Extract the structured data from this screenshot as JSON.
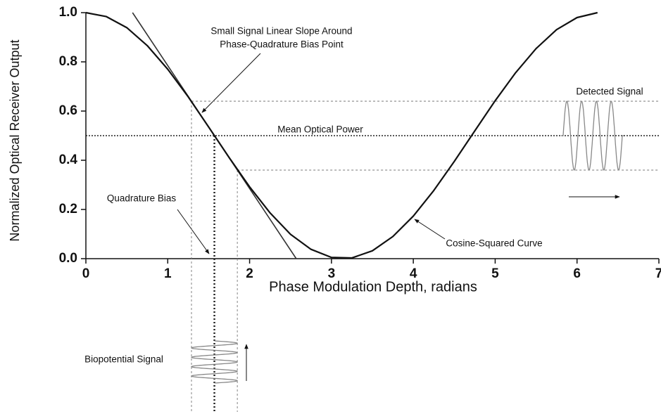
{
  "chart_data": {
    "type": "line",
    "x_label": "Phase Modulation Depth, radians",
    "y_label": "Normalized Optical Receiver Output",
    "xlim": [
      0,
      7
    ],
    "ylim": [
      0,
      1
    ],
    "xticks": [
      0,
      1,
      2,
      3,
      4,
      5,
      6,
      7
    ],
    "yticks": [
      {
        "value": 0,
        "label": "0.0"
      },
      0.2,
      0.4,
      0.6,
      0.8,
      {
        "value": 1,
        "label": "1.0"
      }
    ],
    "series": [
      {
        "color": "#111111",
        "x": [
          0,
          0.25,
          0.5,
          0.75,
          1,
          1.25,
          1.5,
          1.75,
          2,
          2.25,
          2.5,
          2.75,
          3,
          3.25,
          3.5,
          3.75,
          4,
          4.25,
          4.5,
          4.75,
          5,
          5.25,
          5.5,
          5.75,
          6,
          6.25
        ],
        "values": [
          1,
          0.984,
          0.939,
          0.866,
          0.77,
          0.658,
          0.535,
          0.411,
          0.292,
          0.186,
          0.099,
          0.038,
          0.005,
          0.003,
          0.032,
          0.09,
          0.173,
          0.277,
          0.395,
          0.519,
          0.642,
          0.756,
          0.854,
          0.931,
          0.98,
          1
        ]
      }
    ],
    "tangent": {
      "x": [
        0.57,
        2.57
      ],
      "y": [
        1,
        0
      ],
      "color": "#333333"
    },
    "hlines": [
      {
        "y": 0.64,
        "x_from": 1.29
      },
      {
        "y": 0.5,
        "x_from": 0
      },
      {
        "y": 0.36,
        "x_from": 1.85
      }
    ],
    "vlines": [
      {
        "x": 1.29,
        "y_from": 0.64
      },
      {
        "x": 1.57,
        "y_from": 0.5
      },
      {
        "x": 1.85,
        "y_from": 0.36
      }
    ],
    "annotations": [
      "Small Signal Linear Slope Around",
      "Phase-Quadrature Bias Point",
      "Mean Optical Power",
      "Detected Signal",
      "Quadrature Bias",
      "Cosine-Squared Curve",
      "Biopotential Signal"
    ]
  }
}
